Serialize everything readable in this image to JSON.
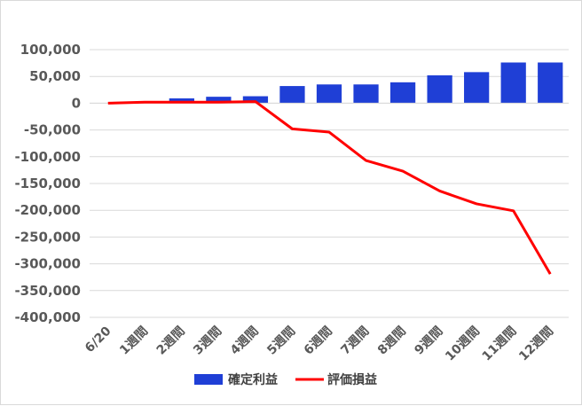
{
  "chart_data": {
    "type": "bar+line",
    "title": "",
    "xlabel": "",
    "ylabel": "",
    "categories": [
      "6/20",
      "1週間",
      "2週間",
      "3週間",
      "4週間",
      "5週間",
      "6週間",
      "7週間",
      "8週間",
      "9週間",
      "10週間",
      "11週間",
      "12週間"
    ],
    "ylim": [
      -400000,
      100000
    ],
    "yticks": [
      100000,
      50000,
      0,
      -50000,
      -100000,
      -150000,
      -200000,
      -250000,
      -300000,
      -350000,
      -400000
    ],
    "ytick_labels": [
      "100,000",
      "50,000",
      "0",
      "-50,000",
      "-100,000",
      "-150,000",
      "-200,000",
      "-250,000",
      "-300,000",
      "-350,000",
      "-400,000"
    ],
    "grid": true,
    "legend_position": "bottom",
    "series": [
      {
        "name": "確定利益",
        "type": "bar",
        "color": "#1f3fd6",
        "values": [
          0,
          0,
          9000,
          12000,
          13000,
          32000,
          35000,
          35000,
          39000,
          52000,
          58000,
          76000,
          76000
        ]
      },
      {
        "name": "評価損益",
        "type": "line",
        "color": "#ff0000",
        "values": [
          0,
          2000,
          2000,
          2000,
          3000,
          -48000,
          -54000,
          -107000,
          -127000,
          -164000,
          -188000,
          -201000,
          -319000
        ]
      }
    ]
  }
}
